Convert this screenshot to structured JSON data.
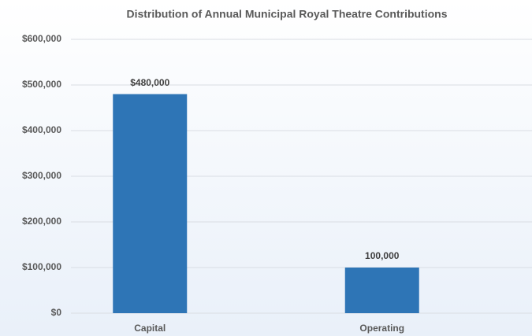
{
  "chart_data": {
    "type": "bar",
    "title": "Distribution of Annual Municipal Royal Theatre Contributions",
    "categories": [
      "Capital",
      "Operating"
    ],
    "values": [
      480000,
      100000
    ],
    "value_labels": [
      "$480,000",
      "100,000"
    ],
    "color": "#2e75b6",
    "ylim": [
      0,
      600000
    ],
    "yticks": [
      {
        "value": 0,
        "label": "$0"
      },
      {
        "value": 100000,
        "label": "$100,000"
      },
      {
        "value": 200000,
        "label": "$200,000"
      },
      {
        "value": 300000,
        "label": "$300,000"
      },
      {
        "value": 400000,
        "label": "$400,000"
      },
      {
        "value": 500000,
        "label": "$500,000"
      },
      {
        "value": 600000,
        "label": "$600,000"
      }
    ],
    "grid": true
  }
}
